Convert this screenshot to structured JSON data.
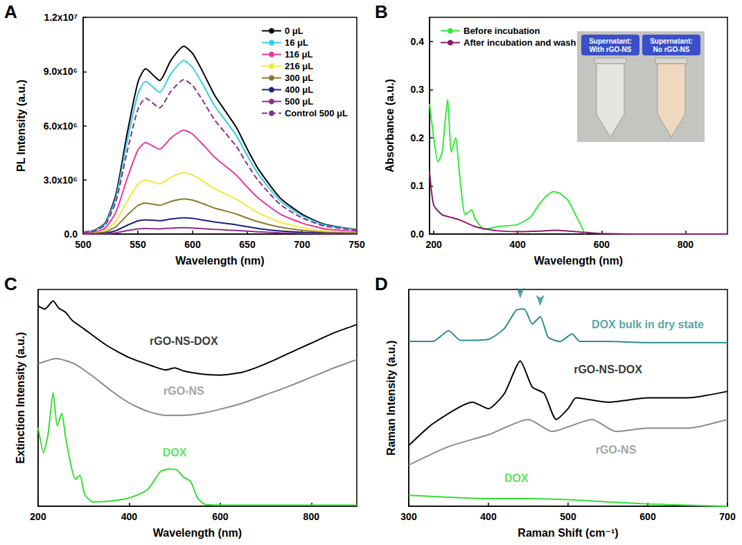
{
  "chart_data": [
    {
      "panel_label": "A",
      "type": "line",
      "x_label": "Wavelength (nm)",
      "y_label": "PL Intensity (a.u.)",
      "xlim": [
        500,
        750
      ],
      "xticks": [
        500,
        550,
        600,
        650,
        700,
        750
      ],
      "ylim": [
        0,
        12000000.0
      ],
      "yticks": [
        {
          "value": 0,
          "label": "0.0"
        },
        {
          "value": 3000000.0,
          "label": "3.0x10⁶"
        },
        {
          "value": 6000000.0,
          "label": "6.0x10⁶"
        },
        {
          "value": 9000000.0,
          "label": "9.0x10⁶"
        },
        {
          "value": 12000000.0,
          "label": "1.2x10⁷"
        }
      ],
      "grid": false,
      "legend": "top-right",
      "x": [
        500,
        510,
        520,
        530,
        540,
        550,
        557,
        570,
        580,
        592,
        600,
        610,
        620,
        630,
        640,
        650,
        660,
        680,
        700,
        720,
        750
      ],
      "series": [
        {
          "name": "0 μL",
          "color": "#000000",
          "line_style": "solid",
          "values": [
            100000.0,
            200000.0,
            600000.0,
            2200000.0,
            5500000.0,
            8400000.0,
            9150000.0,
            8500000.0,
            9600000.0,
            10400000.0,
            10000000.0,
            8900000.0,
            7700000.0,
            6800000.0,
            5900000.0,
            4700000.0,
            3600000.0,
            2000000.0,
            1100000.0,
            550000.0,
            250000.0
          ]
        },
        {
          "name": "16 μL",
          "color": "#33ccee",
          "line_style": "solid",
          "values": [
            90000.0,
            180000.0,
            550000.0,
            2030000.0,
            5080000.0,
            7750000.0,
            8450000.0,
            7850000.0,
            8860000.0,
            9600000.0,
            9230000.0,
            8210000.0,
            7110000.0,
            6280000.0,
            5450000.0,
            4340000.0,
            3320000.0,
            1850000.0,
            1020000.0,
            510000.0,
            230000.0
          ]
        },
        {
          "name": "116 μL",
          "color": "#e8359e",
          "line_style": "solid",
          "values": [
            60000.0,
            110000.0,
            330000.0,
            1220000.0,
            3040000.0,
            4650000.0,
            5060000.0,
            4700000.0,
            5310000.0,
            5750000.0,
            5530000.0,
            4920000.0,
            4260000.0,
            3760000.0,
            3260000.0,
            2600000.0,
            1990000.0,
            1110000.0,
            610000.0,
            300000.0,
            140000.0
          ]
        },
        {
          "name": "216 μL",
          "color": "#f2e83a",
          "line_style": "solid",
          "values": [
            30000.0,
            70000.0,
            200000.0,
            720000.0,
            1800000.0,
            2750000.0,
            2990000.0,
            2780000.0,
            3140000.0,
            3400000.0,
            3270000.0,
            2910000.0,
            2520000.0,
            2220000.0,
            1930000.0,
            1540000.0,
            1180000.0,
            650000.0,
            360000.0,
            180000.0,
            80000.0
          ]
        },
        {
          "name": "300 μL",
          "color": "#8a7a2e",
          "line_style": "solid",
          "values": [
            20000.0,
            40000.0,
            110000.0,
            410000.0,
            1030000.0,
            1580000.0,
            1720000.0,
            1590000.0,
            1800000.0,
            1950000.0,
            1880000.0,
            1670000.0,
            1440000.0,
            1280000.0,
            1110000.0,
            880000.0,
            680000.0,
            380000.0,
            210000.0,
            100000.0,
            50000.0
          ]
        },
        {
          "name": "400 μL",
          "color": "#1a237e",
          "line_style": "solid",
          "values": [
            10000.0,
            20000.0,
            50000.0,
            190000.0,
            480000.0,
            730000.0,
            790000.0,
            740000.0,
            830000.0,
            900000.0,
            870000.0,
            770000.0,
            670000.0,
            590000.0,
            510000.0,
            410000.0,
            310000.0,
            170000.0,
            100000.0,
            50000.0,
            20000.0
          ]
        },
        {
          "name": "500 μL",
          "color": "#8e2c87",
          "line_style": "solid",
          "values": [
            0.0,
            10000.0,
            20000.0,
            70000.0,
            190000.0,
            290000.0,
            310000.0,
            290000.0,
            330000.0,
            350000.0,
            340000.0,
            300000.0,
            260000.0,
            230000.0,
            200000.0,
            160000.0,
            120000.0,
            70000.0,
            40000.0,
            20000.0,
            10000.0
          ]
        },
        {
          "name": "Control 500 μL",
          "color": "#8e2c87",
          "line_style": "dashed",
          "values": [
            80000.0,
            160000.0,
            490000.0,
            1810000.0,
            4520000.0,
            6900000.0,
            7520000.0,
            6990000.0,
            7890000.0,
            8550000.0,
            8220000.0,
            7320000.0,
            6330000.0,
            5590000.0,
            4850000.0,
            3860000.0,
            2960000.0,
            1640000.0,
            900000.0,
            450000.0,
            210000.0
          ]
        }
      ]
    },
    {
      "panel_label": "B",
      "type": "line",
      "x_label": "Wavelength (nm)",
      "y_label": "Absorbance (a.u.)",
      "xlim": [
        190,
        900
      ],
      "xticks": [
        200,
        400,
        600,
        800
      ],
      "ylim": [
        0,
        0.45
      ],
      "yticks": [
        {
          "value": 0,
          "label": "0.0"
        },
        0.1,
        0.2,
        0.3,
        0.4
      ],
      "grid": false,
      "legend": "top-left",
      "inset_labels": [
        "Supernatant: With rGO-NS",
        "Supernatant: No rGO-NS"
      ],
      "series": [
        {
          "name": "Before incubation",
          "color": "#33e833",
          "line_style": "solid",
          "x": [
            190,
            200,
            210,
            220,
            233,
            242,
            252,
            262,
            275,
            290,
            300,
            320,
            350,
            400,
            430,
            450,
            470,
            485,
            500,
            520,
            535,
            550,
            560
          ],
          "values": [
            0.27,
            0.2,
            0.15,
            0.17,
            0.28,
            0.17,
            0.2,
            0.12,
            0.04,
            0.05,
            0.03,
            0.01,
            0.015,
            0.02,
            0.035,
            0.06,
            0.08,
            0.088,
            0.085,
            0.07,
            0.045,
            0.02,
            0.0
          ]
        },
        {
          "name": "After incubation and wash",
          "color": "#8b1a6b",
          "line_style": "solid",
          "x": [
            190,
            200,
            220,
            240,
            260,
            300,
            350,
            400,
            450,
            490,
            550,
            600,
            700,
            800,
            900
          ],
          "values": [
            0.13,
            0.06,
            0.04,
            0.035,
            0.03,
            0.015,
            0.007,
            0.005,
            0.006,
            0.008,
            0.004,
            0.001,
            0.0,
            0.0,
            0.0
          ]
        }
      ]
    },
    {
      "panel_label": "C",
      "type": "line",
      "x_label": "Wavelength (nm)",
      "y_label": "Extinction Intensity (a.u.)",
      "xlim": [
        200,
        900
      ],
      "xticks": [
        200,
        400,
        600,
        800
      ],
      "ylim": [
        0,
        10.5
      ],
      "tick_labels": "x",
      "grid": false,
      "legend": false,
      "annotations": [
        {
          "text": "rGO-NS-DOX",
          "x": 520,
          "y": 8.0,
          "color": "#000000"
        },
        {
          "text": "rGO-NS",
          "x": 520,
          "y": 5.6,
          "color": "#8a8a8a"
        },
        {
          "text": "DOX",
          "x": 500,
          "y": 2.6,
          "color": "#33dd33"
        }
      ],
      "series": [
        {
          "name": "rGO-NS-DOX",
          "color": "#000000",
          "line_style": "solid",
          "x": [
            200,
            215,
            233,
            245,
            260,
            275,
            300,
            350,
            400,
            450,
            480,
            500,
            520,
            560,
            600,
            650,
            700,
            750,
            800,
            850,
            900
          ],
          "values": [
            9.7,
            9.55,
            9.95,
            9.6,
            9.4,
            9.0,
            8.6,
            7.8,
            7.2,
            6.8,
            6.6,
            6.7,
            6.55,
            6.4,
            6.35,
            6.5,
            6.9,
            7.4,
            7.9,
            8.4,
            8.8
          ]
        },
        {
          "name": "rGO-NS",
          "color": "#8a8a8a",
          "line_style": "solid",
          "x": [
            200,
            240,
            280,
            320,
            360,
            400,
            440,
            480,
            520,
            560,
            600,
            650,
            700,
            750,
            800,
            850,
            900
          ],
          "values": [
            6.9,
            7.15,
            6.9,
            6.3,
            5.6,
            5.0,
            4.6,
            4.4,
            4.4,
            4.5,
            4.7,
            5.0,
            5.4,
            5.8,
            6.25,
            6.7,
            7.1
          ]
        },
        {
          "name": "DOX",
          "color": "#33dd33",
          "line_style": "solid",
          "x": [
            200,
            212,
            222,
            233,
            242,
            252,
            260,
            272,
            282,
            292,
            302,
            320,
            360,
            400,
            440,
            470,
            490,
            505,
            520,
            535,
            550,
            565,
            600,
            700,
            800,
            900
          ],
          "values": [
            3.8,
            2.6,
            3.5,
            5.5,
            3.9,
            4.5,
            3.4,
            2.0,
            1.3,
            1.5,
            0.6,
            0.2,
            0.25,
            0.4,
            0.8,
            1.7,
            1.8,
            1.75,
            1.4,
            1.2,
            0.4,
            0.1,
            0.05,
            0.05,
            0.05,
            0.05
          ]
        }
      ]
    },
    {
      "panel_label": "D",
      "type": "line",
      "x_label": "Raman Shift (cm⁻¹)",
      "y_label": "Raman Intensity (a.u.)",
      "xlim": [
        300,
        700
      ],
      "xticks": [
        300,
        400,
        500,
        600,
        700
      ],
      "ylim": [
        0,
        10
      ],
      "tick_labels": "x",
      "grid": false,
      "legend": false,
      "arrows": [
        {
          "x": 440,
          "y": 9.2
        },
        {
          "x": 465,
          "y": 8.85
        }
      ],
      "annotations": [
        {
          "text": "DOX bulk in dry state",
          "x": 600,
          "y": 8.4,
          "color": "#2a8c8c"
        },
        {
          "text": "rGO-NS-DOX",
          "x": 550,
          "y": 6.3,
          "color": "#000000"
        },
        {
          "text": "rGO-NS",
          "x": 560,
          "y": 2.6,
          "color": "#8a8a8a"
        },
        {
          "text": "DOX",
          "x": 435,
          "y": 1.3,
          "color": "#33dd33"
        }
      ],
      "series": [
        {
          "name": "DOX bulk in dry state",
          "color": "#2a8c8c",
          "line_style": "solid",
          "x": [
            300,
            330,
            350,
            365,
            400,
            420,
            435,
            445,
            455,
            465,
            475,
            490,
            505,
            515,
            550,
            600,
            650,
            700
          ],
          "values": [
            7.6,
            7.6,
            8.1,
            7.65,
            7.7,
            8.2,
            9.05,
            9.1,
            8.4,
            8.75,
            7.8,
            7.6,
            7.95,
            7.6,
            7.6,
            7.55,
            7.55,
            7.55
          ]
        },
        {
          "name": "rGO-NS-DOX",
          "color": "#000000",
          "line_style": "solid",
          "x": [
            300,
            330,
            380,
            400,
            420,
            440,
            455,
            470,
            485,
            500,
            510,
            550,
            600,
            650,
            700
          ],
          "values": [
            2.8,
            3.8,
            4.8,
            4.5,
            5.2,
            6.7,
            5.5,
            5.2,
            4.0,
            4.5,
            5.0,
            4.8,
            5.0,
            5.0,
            5.3
          ]
        },
        {
          "name": "rGO-NS",
          "color": "#8a8a8a",
          "line_style": "solid",
          "x": [
            300,
            350,
            400,
            450,
            480,
            530,
            560,
            600,
            650,
            700
          ],
          "values": [
            1.9,
            2.75,
            3.3,
            4.0,
            3.45,
            4.0,
            3.45,
            3.6,
            3.6,
            4.0
          ]
        },
        {
          "name": "DOX",
          "color": "#33dd33",
          "line_style": "solid",
          "x": [
            300,
            400,
            450,
            500,
            600,
            700
          ],
          "values": [
            0.5,
            0.35,
            0.35,
            0.3,
            0.1,
            0.0
          ]
        }
      ]
    }
  ]
}
